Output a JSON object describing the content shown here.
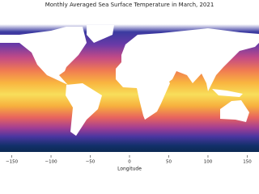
{
  "chart_data": {
    "type": "map",
    "title": "Monthly Averaged Sea Surface Temperature in March, 2021",
    "x_label": "Longitude",
    "xlim": [
      -165,
      165
    ],
    "xticks": [
      {
        "value": -150,
        "label": "−150"
      },
      {
        "value": -100,
        "label": "−100"
      },
      {
        "value": -50,
        "label": "−50"
      },
      0,
      50,
      100,
      150
    ]
  }
}
